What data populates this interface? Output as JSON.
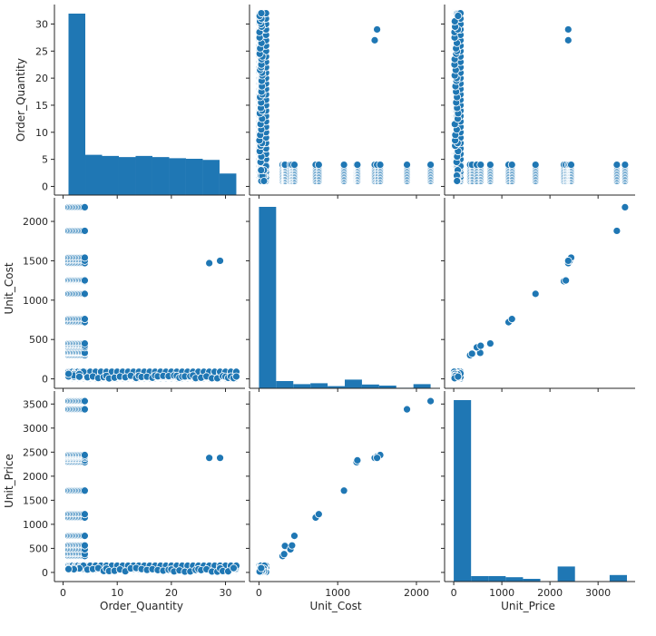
{
  "chart_data": {
    "type": "scatter",
    "layout": "pairplot",
    "color": "#1f77b4",
    "variables": [
      "Order_Quantity",
      "Unit_Cost",
      "Unit_Price"
    ],
    "axes": {
      "Order_Quantity": {
        "label": "Order_Quantity",
        "range": [
          -1.6,
          33.6
        ],
        "ticks": [
          0,
          5,
          10,
          15,
          20,
          25,
          30
        ],
        "tick_labels": [
          "0",
          "5",
          "10",
          "15",
          "20",
          "25",
          "30"
        ],
        "x_ticks": [
          0,
          10,
          20,
          30
        ],
        "x_tick_labels": [
          "0",
          "10",
          "20",
          "30"
        ]
      },
      "Unit_Cost": {
        "label": "Unit_Cost",
        "range": [
          -120,
          2300
        ],
        "ticks": [
          0,
          500,
          1000,
          1500,
          2000
        ],
        "tick_labels": [
          "0",
          "500",
          "1000",
          "1500",
          "2000"
        ],
        "x_ticks": [
          0,
          1000,
          2000
        ],
        "x_tick_labels": [
          "0",
          "1000",
          "2000"
        ]
      },
      "Unit_Price": {
        "label": "Unit_Price",
        "range": [
          -190,
          3770
        ],
        "ticks": [
          0,
          500,
          1000,
          1500,
          2000,
          2500,
          3000,
          3500
        ],
        "tick_labels": [
          "0",
          "500",
          "1000",
          "1500",
          "2000",
          "2500",
          "3000",
          "3500"
        ],
        "x_ticks": [
          0,
          1000,
          2000,
          3000
        ],
        "x_tick_labels": [
          "0",
          "1000",
          "2000",
          "3000"
        ]
      }
    },
    "histograms": {
      "Order_Quantity": {
        "bin_edges": [
          1,
          4.1,
          7.2,
          10.3,
          13.4,
          16.5,
          19.6,
          22.7,
          25.8,
          28.9,
          32
        ],
        "counts": [
          32,
          7.1,
          6.9,
          6.7,
          6.9,
          6.7,
          6.5,
          6.4,
          6.2,
          3.8
        ]
      },
      "Unit_Cost": {
        "bin_edges": [
          0,
          218,
          436,
          654,
          872,
          1090,
          1308,
          1526,
          1744,
          1962,
          2180
        ],
        "counts": [
          100,
          4.0,
          2.3,
          2.8,
          1.2,
          4.8,
          2.1,
          1.5,
          0.3,
          2.3
        ]
      },
      "Unit_Price": {
        "bin_edges": [
          0,
          360,
          720,
          1080,
          1440,
          1800,
          2160,
          2520,
          2880,
          3240,
          3600
        ],
        "counts": [
          100,
          3.0,
          3.0,
          2.4,
          1.5,
          0,
          8.3,
          0,
          0,
          3.6
        ]
      }
    },
    "unique_values": {
      "Order_Quantity": [
        1,
        1.5,
        2,
        2.5,
        3,
        3.5,
        4
      ],
      "dense_quantity": [
        1,
        1.25,
        1.5,
        1.75,
        2,
        2.25,
        2.5,
        2.75,
        3,
        3.25,
        3.5,
        3.75,
        4
      ],
      "cost_price_pairs": [
        [
          5,
          8
        ],
        [
          10,
          16
        ],
        [
          15,
          25
        ],
        [
          20,
          35
        ],
        [
          25,
          45
        ],
        [
          35,
          55
        ],
        [
          45,
          70
        ],
        [
          55,
          90
        ],
        [
          70,
          115
        ],
        [
          90,
          140
        ],
        [
          300,
          340
        ],
        [
          320,
          380
        ],
        [
          330,
          550
        ],
        [
          400,
          480
        ],
        [
          420,
          560
        ],
        [
          450,
          760
        ],
        [
          720,
          1140
        ],
        [
          760,
          1210
        ],
        [
          1080,
          1700
        ],
        [
          1240,
          2290
        ],
        [
          1250,
          2330
        ],
        [
          1470,
          2380
        ],
        [
          1500,
          2410
        ],
        [
          1540,
          2440
        ],
        [
          1880,
          3390
        ],
        [
          2180,
          3560
        ]
      ],
      "outliers": [
        [
          27,
          1470,
          2380
        ],
        [
          29,
          1500,
          2380
        ]
      ]
    }
  }
}
